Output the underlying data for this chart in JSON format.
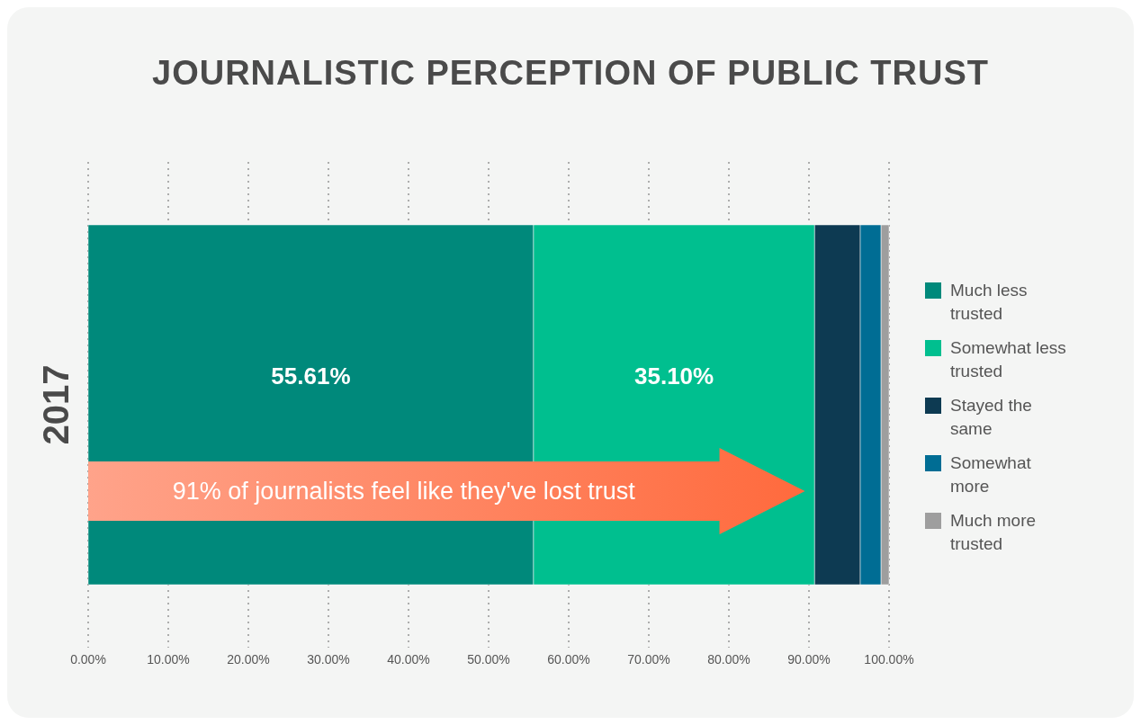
{
  "chart_data": {
    "type": "bar",
    "orientation": "horizontal",
    "stacked": true,
    "title": "JOURNALISTIC PERCEPTION OF PUBLIC TRUST",
    "categories": [
      "2017"
    ],
    "series": [
      {
        "name": "Much less trusted",
        "color": "#00897b",
        "values": [
          55.61
        ],
        "value_labels": [
          "55.61%"
        ]
      },
      {
        "name": "Somewhat less trusted",
        "color": "#00bf8f",
        "values": [
          35.1
        ],
        "value_labels": [
          "35.10%"
        ]
      },
      {
        "name": "Stayed the same",
        "color": "#0d3a52",
        "values": [
          5.7
        ]
      },
      {
        "name": "Somewhat more",
        "color": "#006d94",
        "values": [
          2.6
        ]
      },
      {
        "name": "Much more trusted",
        "color": "#9e9e9e",
        "values": [
          1.0
        ]
      }
    ],
    "xlim": [
      0,
      100
    ],
    "xticks": [
      {
        "value": 0,
        "label": "0.00%"
      },
      {
        "value": 10,
        "label": "10.00%"
      },
      {
        "value": 20,
        "label": "20.00%"
      },
      {
        "value": 30,
        "label": "30.00%"
      },
      {
        "value": 40,
        "label": "40.00%"
      },
      {
        "value": 50,
        "label": "50.00%"
      },
      {
        "value": 60,
        "label": "60.00%"
      },
      {
        "value": 70,
        "label": "70.00%"
      },
      {
        "value": 80,
        "label": "80.00%"
      },
      {
        "value": 90,
        "label": "90.00%"
      },
      {
        "value": 100,
        "label": "100.00%"
      }
    ],
    "annotations": [
      "91% of journalists feel like they've lost trust"
    ],
    "grid": "x",
    "legend": "right"
  }
}
